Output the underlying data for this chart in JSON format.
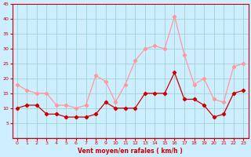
{
  "hours": [
    0,
    1,
    2,
    3,
    4,
    5,
    6,
    7,
    8,
    9,
    10,
    11,
    12,
    13,
    14,
    15,
    16,
    17,
    18,
    19,
    20,
    21,
    22,
    23
  ],
  "wind_avg": [
    10,
    11,
    11,
    8,
    8,
    7,
    7,
    7,
    8,
    12,
    10,
    10,
    10,
    15,
    15,
    15,
    22,
    13,
    13,
    11,
    7,
    8,
    15,
    16
  ],
  "wind_gust": [
    18,
    16,
    15,
    15,
    11,
    11,
    10,
    11,
    21,
    19,
    12,
    18,
    26,
    30,
    31,
    30,
    41,
    28,
    18,
    20,
    13,
    12,
    24,
    25
  ],
  "bg_color": "#cceeff",
  "grid_color": "#99cccc",
  "line_avg_color": "#cc0000",
  "line_gust_color": "#ff9999",
  "xlabel": "Vent moyen/en rafales ( km/h )",
  "ylim": [
    0,
    45
  ],
  "yticks": [
    5,
    10,
    15,
    20,
    25,
    30,
    35,
    40,
    45
  ],
  "xticks": [
    0,
    1,
    2,
    3,
    4,
    5,
    6,
    7,
    8,
    9,
    10,
    11,
    12,
    13,
    14,
    15,
    16,
    17,
    18,
    19,
    20,
    21,
    22,
    23
  ]
}
